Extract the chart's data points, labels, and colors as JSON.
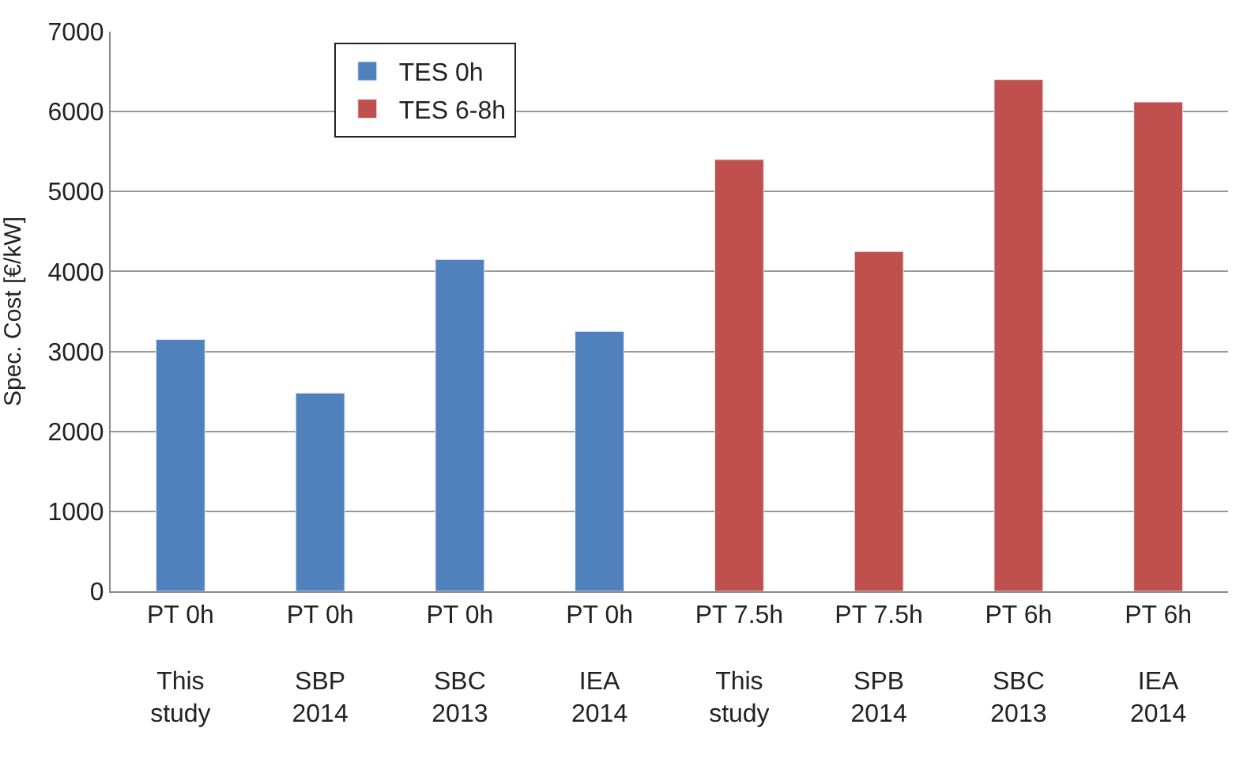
{
  "chart_data": {
    "type": "bar",
    "ylabel": "Spec. Cost [€/kW]",
    "categories": [
      "PT 0h\n\nThis\nstudy",
      "PT 0h\n\nSBP\n2014",
      "PT 0h\n\nSBC\n2013",
      "PT 0h\n\nIEA\n2014",
      "PT 7.5h\n\nThis\nstudy",
      "PT 7.5h\n\nSPB\n2014",
      "PT 6h\n\nSBC\n2013",
      "PT 6h\n\nIEA\n2014"
    ],
    "series": [
      {
        "name": "TES 0h",
        "color": "#4f81bd",
        "values": [
          3150,
          2480,
          4150,
          3250,
          null,
          null,
          null,
          null
        ]
      },
      {
        "name": "TES 6-8h",
        "color": "#c0504d",
        "values": [
          null,
          null,
          null,
          null,
          5400,
          4250,
          6400,
          6120
        ]
      }
    ],
    "ylim": [
      0,
      7000
    ],
    "yticks": [
      0,
      1000,
      2000,
      3000,
      4000,
      5000,
      6000,
      7000
    ],
    "grid": "y",
    "legend": "top left"
  }
}
